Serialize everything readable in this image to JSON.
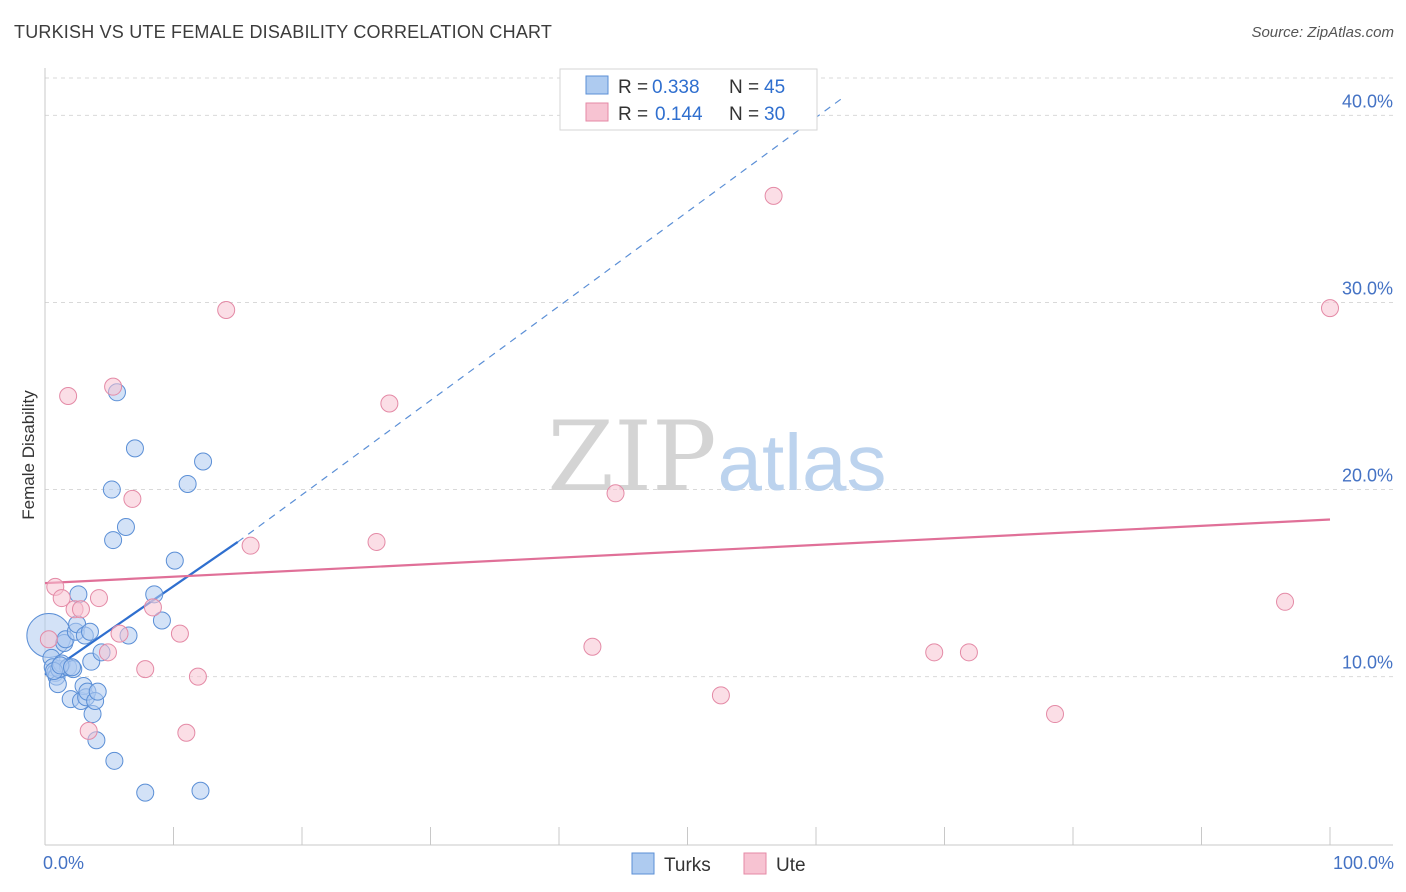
{
  "header": {
    "title": "TURKISH VS UTE FEMALE DISABILITY CORRELATION CHART",
    "source": "Source: ZipAtlas.com"
  },
  "watermark": {
    "zip": "ZIP",
    "atlas": "atlas"
  },
  "colors": {
    "turks_fill": "#aecbf0",
    "turks_stroke": "#5b8fd6",
    "turks_line": "#2f6fcf",
    "ute_fill": "#f7c3d2",
    "ute_stroke": "#e48aa6",
    "ute_line": "#e07098",
    "label_blue": "#4472c4",
    "grid": "#d9d9d9"
  },
  "legend_top": {
    "rows": [
      {
        "r_label": "R = ",
        "r_value": "0.338",
        "n_label": "N = ",
        "n_value": "45",
        "series": "turks"
      },
      {
        "r_label": "R = ",
        "r_value": "0.144",
        "n_label": "N = ",
        "n_value": "30",
        "series": "ute"
      }
    ]
  },
  "legend_bottom": {
    "turks": "Turks",
    "ute": "Ute"
  },
  "chart_data": {
    "type": "scatter",
    "title": "TURKISH VS UTE FEMALE DISABILITY CORRELATION CHART",
    "xlabel": "",
    "ylabel": "Female Disability",
    "xlim": [
      0,
      100
    ],
    "ylim": [
      1.0,
      42.0
    ],
    "x_tick_labels": [
      {
        "value": 0,
        "label": "0.0%"
      },
      {
        "value": 100,
        "label": "100.0%"
      }
    ],
    "x_minor_ticks": [
      10,
      20,
      30,
      40,
      50,
      60,
      70,
      80,
      90,
      100
    ],
    "y_ticks": [
      {
        "value": 10,
        "label": "10.0%"
      },
      {
        "value": 20,
        "label": "20.0%"
      },
      {
        "value": 30,
        "label": "30.0%"
      },
      {
        "value": 40,
        "label": "40.0%"
      }
    ],
    "series": [
      {
        "name": "Turks",
        "key": "turks",
        "r": 0.338,
        "n": 45,
        "points": [
          [
            0.3,
            12.2,
            "big"
          ],
          [
            0.5,
            11.0
          ],
          [
            0.6,
            10.5
          ],
          [
            0.8,
            10.2
          ],
          [
            0.9,
            10.0
          ],
          [
            1.0,
            9.6
          ],
          [
            1.1,
            10.4
          ],
          [
            1.3,
            10.7
          ],
          [
            1.5,
            11.8
          ],
          [
            1.6,
            12.0
          ],
          [
            1.8,
            10.5
          ],
          [
            2.0,
            8.8
          ],
          [
            2.2,
            10.4
          ],
          [
            2.4,
            12.4
          ],
          [
            2.5,
            12.8
          ],
          [
            2.6,
            14.4
          ],
          [
            2.8,
            8.7
          ],
          [
            3.0,
            9.5
          ],
          [
            3.1,
            12.2
          ],
          [
            3.2,
            8.9
          ],
          [
            3.3,
            9.2
          ],
          [
            3.5,
            12.4
          ],
          [
            3.6,
            10.8
          ],
          [
            3.7,
            8.0
          ],
          [
            3.9,
            8.7
          ],
          [
            4.0,
            6.6
          ],
          [
            4.1,
            9.2
          ],
          [
            4.4,
            11.3
          ],
          [
            5.2,
            20.0
          ],
          [
            5.3,
            17.3
          ],
          [
            5.4,
            5.5
          ],
          [
            5.6,
            25.2
          ],
          [
            6.3,
            18.0
          ],
          [
            6.5,
            12.2
          ],
          [
            7.0,
            22.2
          ],
          [
            7.8,
            3.8
          ],
          [
            8.5,
            14.4
          ],
          [
            9.1,
            13.0
          ],
          [
            10.1,
            16.2
          ],
          [
            11.1,
            20.3
          ],
          [
            12.1,
            3.9
          ],
          [
            12.3,
            21.5
          ],
          [
            0.7,
            10.3
          ],
          [
            1.2,
            10.6
          ],
          [
            2.1,
            10.5
          ]
        ]
      },
      {
        "name": "Ute",
        "key": "ute",
        "r": 0.144,
        "n": 30,
        "points": [
          [
            0.3,
            12.0
          ],
          [
            0.8,
            14.8
          ],
          [
            1.3,
            14.2
          ],
          [
            1.8,
            25.0
          ],
          [
            2.3,
            13.6
          ],
          [
            2.8,
            13.6
          ],
          [
            3.4,
            7.1
          ],
          [
            4.2,
            14.2
          ],
          [
            4.9,
            11.3
          ],
          [
            5.3,
            25.5
          ],
          [
            5.8,
            12.3
          ],
          [
            6.8,
            19.5
          ],
          [
            7.8,
            10.4
          ],
          [
            8.4,
            13.7
          ],
          [
            10.5,
            12.3
          ],
          [
            11.0,
            7.0
          ],
          [
            11.9,
            10.0
          ],
          [
            14.1,
            29.6
          ],
          [
            16.0,
            17.0
          ],
          [
            25.8,
            17.2
          ],
          [
            26.8,
            24.6
          ],
          [
            42.6,
            11.6
          ],
          [
            44.4,
            19.8
          ],
          [
            52.6,
            9.0
          ],
          [
            56.7,
            35.7
          ],
          [
            69.2,
            11.3
          ],
          [
            71.9,
            11.3
          ],
          [
            78.6,
            8.0
          ],
          [
            96.5,
            14.0
          ],
          [
            100.0,
            29.7
          ]
        ]
      }
    ],
    "trendlines": [
      {
        "series": "turks",
        "x_start": 0,
        "y_start": 10.1,
        "x_solid_end": 15,
        "y_solid_end": 17.2,
        "x_dash_end": 62,
        "y_dash_end": 40.9
      },
      {
        "series": "ute",
        "x_start": 0,
        "y_start": 15.0,
        "x_end": 100,
        "y_end": 18.4
      }
    ]
  }
}
